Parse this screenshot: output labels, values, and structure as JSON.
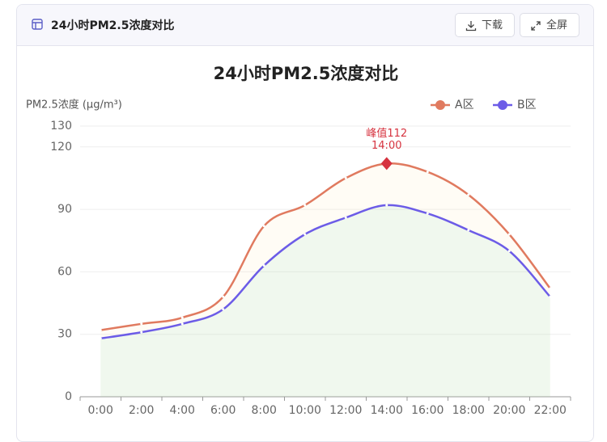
{
  "header": {
    "title": "24小时PM2.5浓度对比",
    "buttons": [
      "下载",
      "全屏"
    ]
  },
  "chart_data": {
    "type": "line",
    "title": "24小时PM2.5浓度对比",
    "y_label": "PM2.5浓度 (μg/m³)",
    "categories": [
      "0:00",
      "2:00",
      "4:00",
      "6:00",
      "8:00",
      "10:00",
      "12:00",
      "14:00",
      "16:00",
      "18:00",
      "20:00",
      "22:00"
    ],
    "series": [
      {
        "name": "A区",
        "color": "#e07a5f",
        "values": [
          32,
          35,
          38,
          48,
          82,
          92,
          105,
          112,
          108,
          97,
          78,
          52
        ]
      },
      {
        "name": "B区",
        "color": "#6c5ce7",
        "values": [
          28,
          31,
          35,
          42,
          63,
          78,
          86,
          92,
          88,
          80,
          70,
          48
        ]
      }
    ],
    "ylim": [
      0,
      130
    ],
    "yticks": [
      0,
      30,
      60,
      90,
      120,
      130
    ],
    "grid": true,
    "smooth": true,
    "area": true,
    "legend": "top-right",
    "annotation": {
      "label": "峰值112",
      "sublabel": "14:00",
      "color": "#d6333f"
    }
  }
}
